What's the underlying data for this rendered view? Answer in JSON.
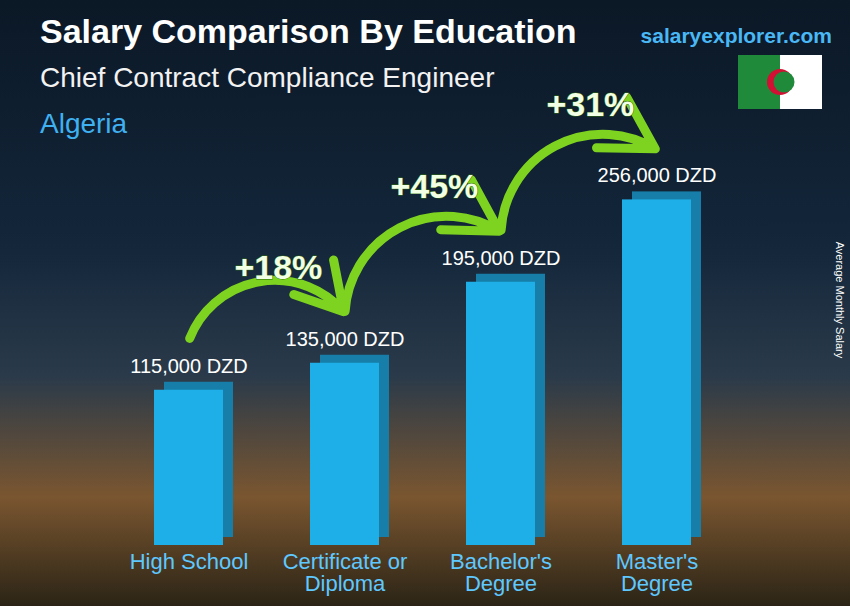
{
  "chart_data": {
    "type": "bar",
    "title": "Salary Comparison By Education",
    "subtitle": "Chief Contract Compliance Engineer",
    "region": "Algeria",
    "source": "salaryexplorer.com",
    "y_label": "Average Monthly Salary",
    "categories": [
      "High School",
      "Certificate or Diploma",
      "Bachelor's Degree",
      "Master's Degree"
    ],
    "values": [
      115000,
      135000,
      195000,
      256000
    ],
    "value_labels": [
      "115,000 DZD",
      "135,000 DZD",
      "195,000 DZD",
      "256,000 DZD"
    ],
    "annotations": [
      "+18%",
      "+45%",
      "+31%"
    ],
    "color": "#1eaee8",
    "ylim": [
      0,
      300000
    ],
    "grid": false,
    "data_labels": true,
    "tick_labels": "x"
  }
}
